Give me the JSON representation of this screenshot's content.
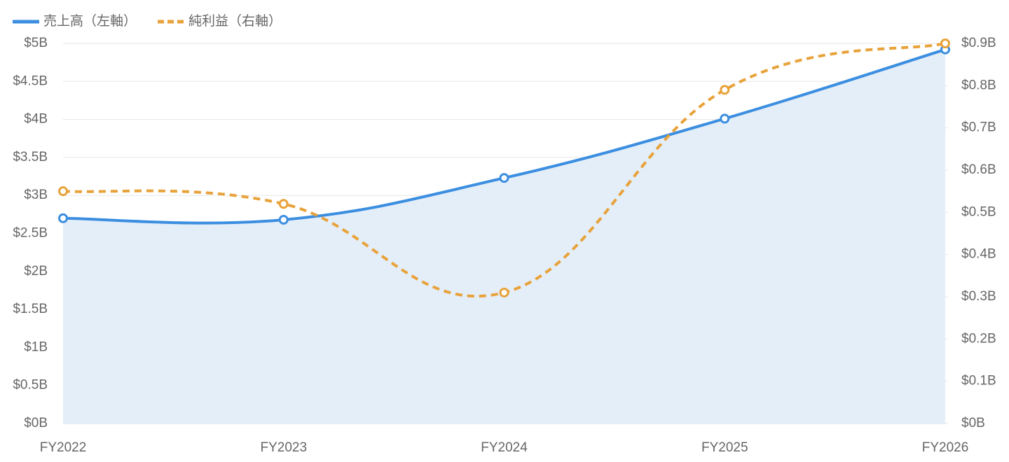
{
  "chart_data": {
    "type": "line",
    "categories": [
      "FY2022",
      "FY2023",
      "FY2024",
      "FY2025",
      "FY2026"
    ],
    "series": [
      {
        "name": "売上高（左軸）",
        "color": "#3b8ee0",
        "values": [
          2.7,
          2.68,
          3.23,
          4.01,
          4.92
        ],
        "axis": "y",
        "style": "solid",
        "fill": "#e4eef9"
      },
      {
        "name": "純利益（右軸）",
        "color": "#e8a23a",
        "values": [
          0.55,
          0.52,
          0.31,
          0.79,
          0.9
        ],
        "axis": "y2",
        "style": "dashed"
      }
    ],
    "ylim": [
      0,
      5
    ],
    "yticks": [
      {
        "value": 0,
        "label": "$0B"
      },
      {
        "value": 0.5,
        "label": "$0.5B"
      },
      {
        "value": 1,
        "label": "$1B"
      },
      {
        "value": 1.5,
        "label": "$1.5B"
      },
      {
        "value": 2,
        "label": "$2B"
      },
      {
        "value": 2.5,
        "label": "$2.5B"
      },
      {
        "value": 3,
        "label": "$3B"
      },
      {
        "value": 3.5,
        "label": "$3.5B"
      },
      {
        "value": 4,
        "label": "$4B"
      },
      {
        "value": 4.5,
        "label": "$4.5B"
      },
      {
        "value": 5,
        "label": "$5B"
      }
    ],
    "y2lim": [
      0,
      0.9
    ],
    "y2ticks": [
      {
        "value": 0,
        "label": "$0B"
      },
      {
        "value": 0.1,
        "label": "$0.1B"
      },
      {
        "value": 0.2,
        "label": "$0.2B"
      },
      {
        "value": 0.3,
        "label": "$0.3B"
      },
      {
        "value": 0.4,
        "label": "$0.4B"
      },
      {
        "value": 0.5,
        "label": "$0.5B"
      },
      {
        "value": 0.6,
        "label": "$0.6B"
      },
      {
        "value": 0.7,
        "label": "$0.7B"
      },
      {
        "value": 0.8,
        "label": "$0.8B"
      },
      {
        "value": 0.9,
        "label": "$0.9B"
      }
    ],
    "grid": true,
    "legend": "top-left"
  }
}
